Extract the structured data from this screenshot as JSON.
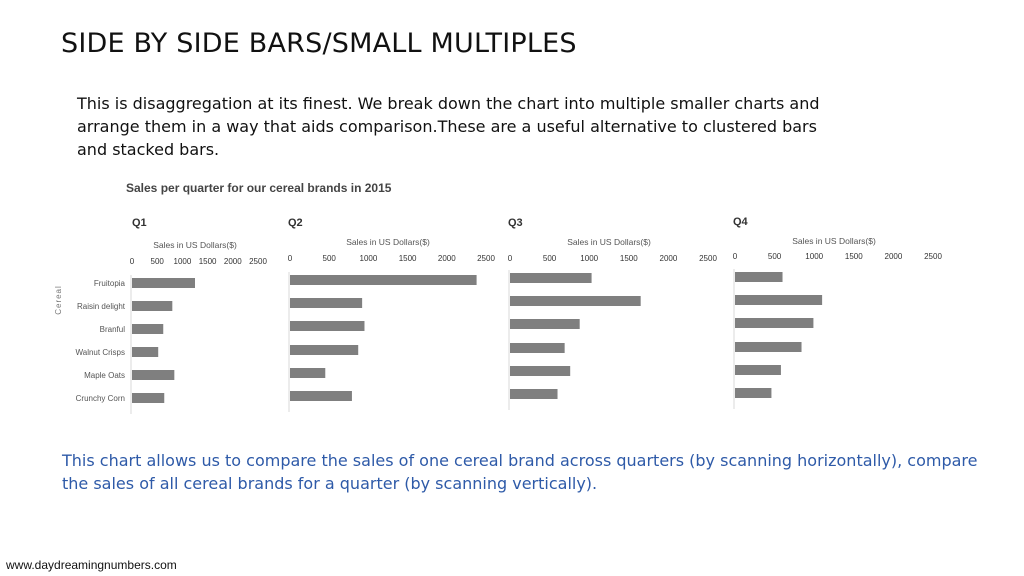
{
  "slide": {
    "title": "SIDE BY SIDE BARS/SMALL MULTIPLES",
    "intro": "This is disaggregation at its finest. We break down the chart into multiple smaller charts and arrange them in a way that aids comparison.These are a useful alternative to clustered bars and stacked bars.",
    "note": "This chart allows us to compare the sales of one cereal brand across quarters (by scanning horizontally), compare the sales of all cereal brands for a quarter (by scanning vertically).",
    "footer": "www.daydreamingnumbers.com"
  },
  "chart_data": {
    "type": "bar",
    "orientation": "horizontal",
    "title": "Sales per quarter for our cereal brands in 2015",
    "ylabel": "Cereal",
    "xlabel": "Sales in US Dollars($)",
    "xlim": [
      0,
      2500
    ],
    "xticks": [
      0,
      500,
      1000,
      1500,
      2000,
      2500
    ],
    "grid": false,
    "categories": [
      "Fruitopia",
      "Raisin delight",
      "Branful",
      "Walnut Crisps",
      "Maple Oats",
      "Crunchy Corn"
    ],
    "series": [
      {
        "name": "Q1",
        "values": [
          1250,
          800,
          620,
          520,
          840,
          640
        ],
        "color": "#7f7f7f"
      },
      {
        "name": "Q2",
        "values": [
          2380,
          920,
          950,
          870,
          450,
          790
        ],
        "color": "#7f7f7f"
      },
      {
        "name": "Q3",
        "values": [
          1030,
          1650,
          880,
          690,
          760,
          600
        ],
        "color": "#7f7f7f"
      },
      {
        "name": "Q4",
        "values": [
          600,
          1100,
          990,
          840,
          580,
          460
        ],
        "color": "#7f7f7f"
      }
    ]
  }
}
